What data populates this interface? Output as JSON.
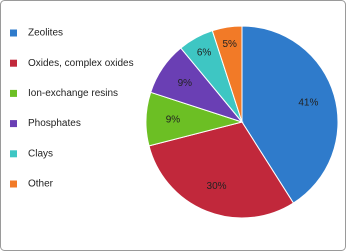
{
  "chart_data": {
    "type": "pie",
    "categories": [
      "Zeolites",
      "Oxides, complex oxides",
      "Ion-exchange resins",
      "Phosphates",
      "Clays",
      "Other"
    ],
    "values": [
      41,
      30,
      9,
      9,
      6,
      5
    ],
    "value_labels": [
      "41%",
      "30%",
      "9%",
      "9%",
      "6%",
      "5%"
    ],
    "colors": [
      "#2f7bcb",
      "#c1283b",
      "#6cbf24",
      "#6a3fb4",
      "#3ec6c3",
      "#f27a27"
    ],
    "legend": "left"
  }
}
